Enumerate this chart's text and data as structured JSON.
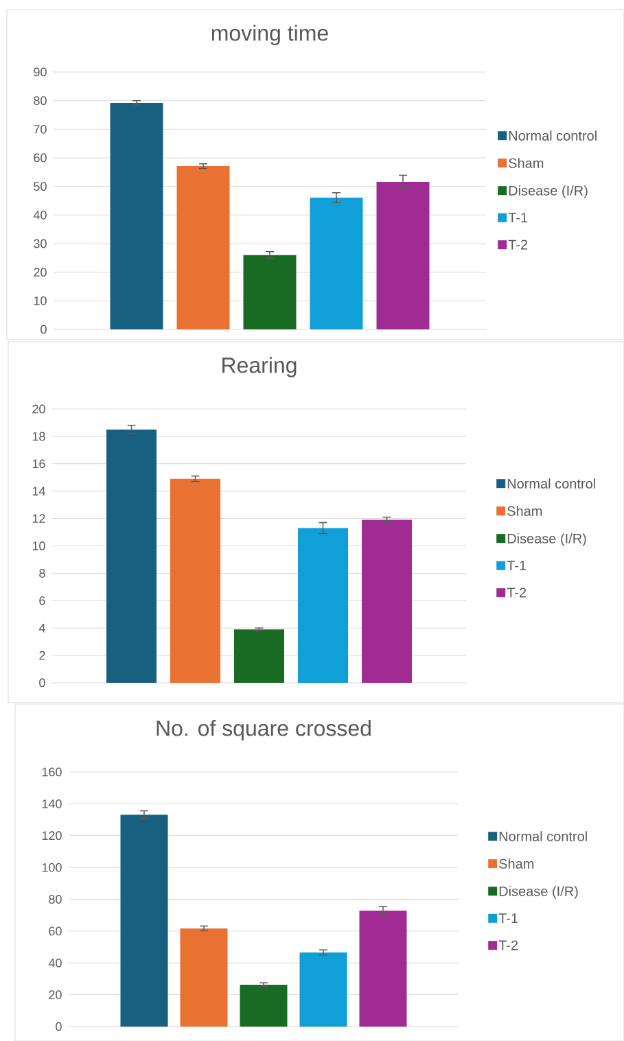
{
  "chart_data": [
    {
      "type": "bar",
      "title": "moving time",
      "categories": [
        null
      ],
      "ylim": [
        0,
        90
      ],
      "yticks": [
        0,
        10,
        20,
        30,
        40,
        50,
        60,
        70,
        80,
        90
      ],
      "grid": "y",
      "legend": "right",
      "series": [
        {
          "name": "Normal control",
          "color": "#17607f",
          "values": [
            79.2
          ],
          "errors": [
            0.8
          ]
        },
        {
          "name": "Sham",
          "color": "#e97132",
          "values": [
            57.1
          ],
          "errors": [
            0.8
          ]
        },
        {
          "name": "Disease (I/R)",
          "color": "#196b24",
          "values": [
            26
          ],
          "errors": [
            1.2
          ]
        },
        {
          "name": "T-1",
          "color": "#109fd6",
          "values": [
            46.1
          ],
          "errors": [
            1.7
          ]
        },
        {
          "name": "T-2",
          "color": "#a02b93",
          "values": [
            51.6
          ],
          "errors": [
            2.3
          ]
        }
      ]
    },
    {
      "type": "bar",
      "title": "Rearing",
      "categories": [
        null
      ],
      "ylim": [
        0,
        20
      ],
      "yticks": [
        0,
        2,
        4,
        6,
        8,
        10,
        12,
        14,
        16,
        18,
        20
      ],
      "grid": "y",
      "legend": "right",
      "series": [
        {
          "name": "Normal control",
          "color": "#17607f",
          "values": [
            18.5
          ],
          "errors": [
            0.3
          ]
        },
        {
          "name": "Sham",
          "color": "#e97132",
          "values": [
            14.9
          ],
          "errors": [
            0.2
          ]
        },
        {
          "name": "Disease (I/R)",
          "color": "#196b24",
          "values": [
            3.9
          ],
          "errors": [
            0.1
          ]
        },
        {
          "name": "T-1",
          "color": "#109fd6",
          "values": [
            11.3
          ],
          "errors": [
            0.4
          ]
        },
        {
          "name": "T-2",
          "color": "#a02b93",
          "values": [
            11.9
          ],
          "errors": [
            0.2
          ]
        }
      ]
    },
    {
      "type": "bar",
      "title": "No. of square crossed",
      "categories": [
        null
      ],
      "ylim": [
        0,
        160
      ],
      "yticks": [
        0,
        20,
        40,
        60,
        80,
        100,
        120,
        140,
        160
      ],
      "grid": "y",
      "legend": "right",
      "series": [
        {
          "name": "Normal control",
          "color": "#17607f",
          "values": [
            133.2
          ],
          "errors": [
            2.4
          ]
        },
        {
          "name": "Sham",
          "color": "#e97132",
          "values": [
            61.7
          ],
          "errors": [
            1.5
          ]
        },
        {
          "name": "Disease (I/R)",
          "color": "#196b24",
          "values": [
            26.3
          ],
          "errors": [
            1.2
          ]
        },
        {
          "name": "T-1",
          "color": "#109fd6",
          "values": [
            46.6
          ],
          "errors": [
            1.6
          ]
        },
        {
          "name": "T-2",
          "color": "#a02b93",
          "values": [
            72.9
          ],
          "errors": [
            2.6
          ]
        }
      ]
    }
  ]
}
